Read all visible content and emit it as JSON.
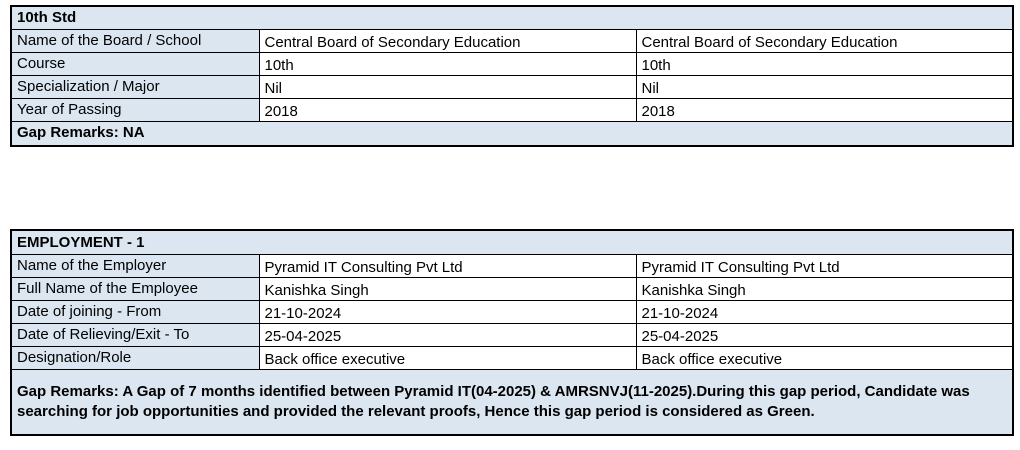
{
  "colors": {
    "label_fill": "#dce6f1",
    "border": "#000000",
    "text": "#000000",
    "page_background": "#ffffff"
  },
  "tables": [
    {
      "id": "table-10th-std",
      "title": "10th Std",
      "rows": [
        {
          "label": "Name of the Board / School",
          "values": [
            "Central Board of Secondary Education",
            "Central Board of Secondary Education"
          ]
        },
        {
          "label": "Course",
          "values": [
            "10th",
            "10th"
          ]
        },
        {
          "label": "Specialization / Major",
          "values": [
            "Nil",
            "Nil"
          ]
        },
        {
          "label": "Year of Passing",
          "values": [
            "2018",
            "2018"
          ]
        }
      ],
      "gap_remarks": "Gap Remarks: NA"
    },
    {
      "id": "table-employment-1",
      "title": "EMPLOYMENT - 1",
      "rows": [
        {
          "label": "Name of the Employer",
          "values": [
            "Pyramid IT Consulting Pvt Ltd",
            "Pyramid IT Consulting Pvt Ltd"
          ]
        },
        {
          "label": "Full Name of the Employee",
          "values": [
            "Kanishka Singh",
            "Kanishka Singh"
          ]
        },
        {
          "label": "Date of joining - From",
          "values": [
            "21-10-2024",
            "21-10-2024"
          ]
        },
        {
          "label": "Date of Relieving/Exit - To",
          "values": [
            "25-04-2025",
            "25-04-2025"
          ]
        },
        {
          "label": "Designation/Role",
          "values": [
            "Back office executive",
            "Back office executive"
          ]
        }
      ],
      "gap_remarks": "Gap Remarks: A Gap of 7 months identified between Pyramid IT(04-2025) & AMRSNVJ(11-2025).During this gap period, Candidate was searching for job opportunities and provided the relevant proofs, Hence this gap period is considered as Green."
    }
  ]
}
